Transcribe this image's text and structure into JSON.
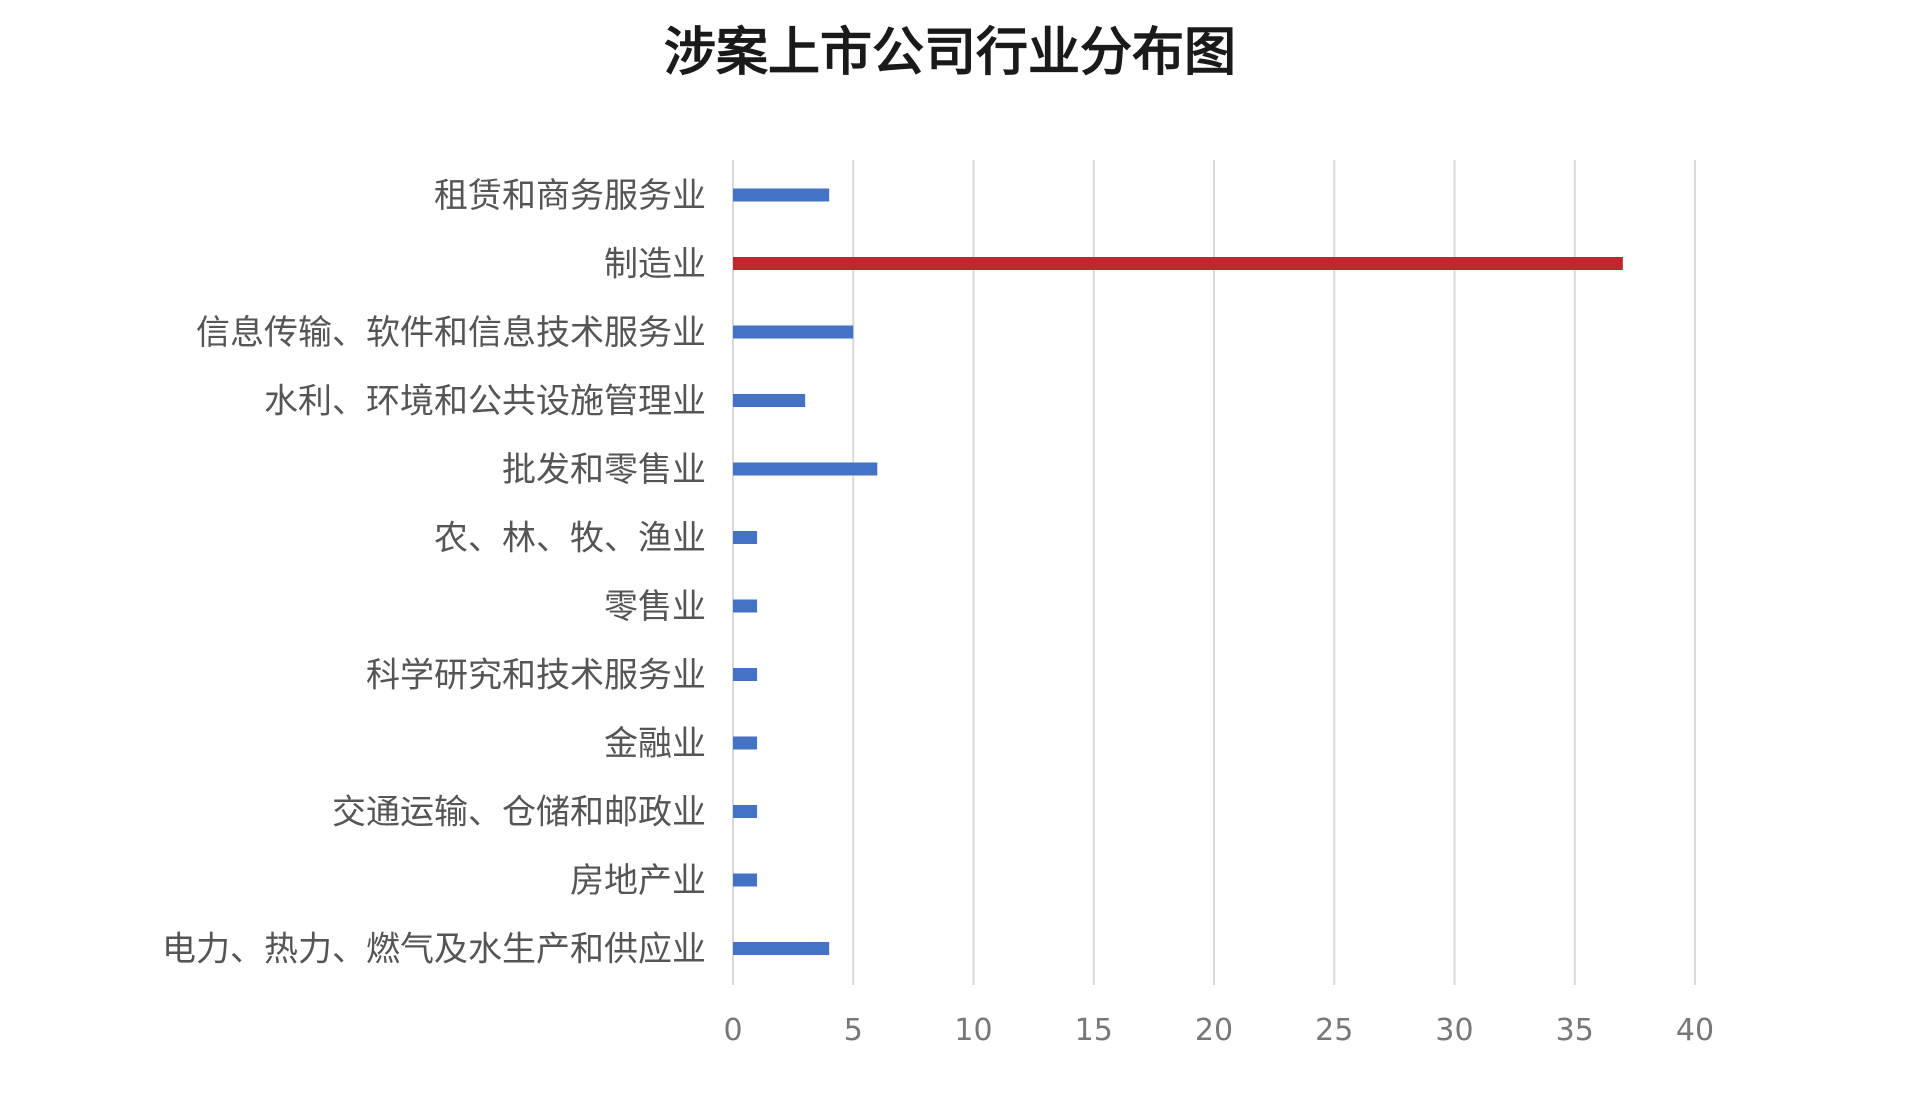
{
  "chart_data": {
    "type": "bar",
    "orientation": "horizontal",
    "title": "涉案上市公司行业分布图",
    "xlabel": "",
    "ylabel": "",
    "xlim": [
      0,
      40
    ],
    "x_ticks": [
      0,
      5,
      10,
      15,
      20,
      25,
      30,
      35,
      40
    ],
    "grid": "vertical",
    "legend": "none",
    "categories": [
      "租赁和商务服务业",
      "制造业",
      "信息传输、软件和信息技术服务业",
      "水利、环境和公共设施管理业",
      "批发和零售业",
      "农、林、牧、渔业",
      "零售业",
      "科学研究和技术服务业",
      "金融业",
      "交通运输、仓储和邮政业",
      "房地产业",
      "电力、热力、燃气及水生产和供应业"
    ],
    "values": [
      4,
      37,
      5,
      3,
      6,
      1,
      1,
      1,
      1,
      1,
      1,
      4
    ],
    "colors": {
      "default": "#4472c4",
      "highlight": "#c0262d"
    },
    "highlight_category": "制造业"
  }
}
